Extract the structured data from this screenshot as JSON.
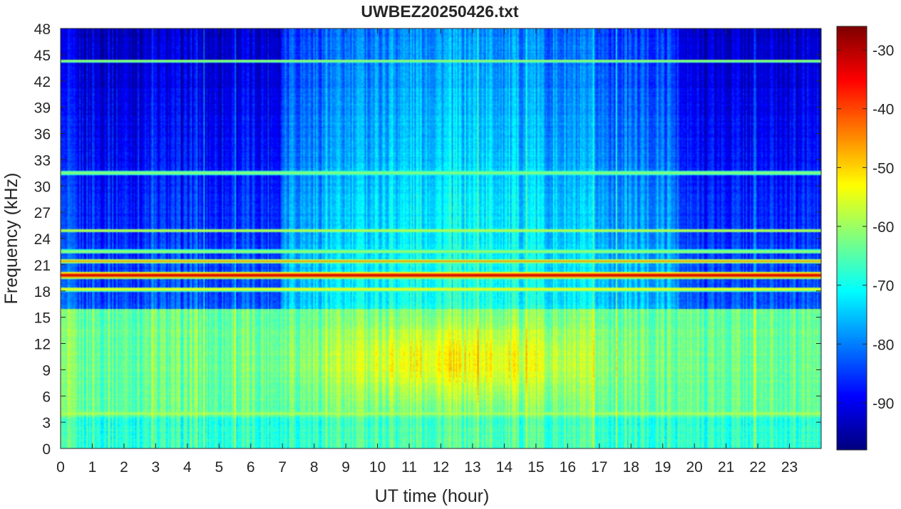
{
  "chart_data": {
    "type": "heatmap",
    "title": "UWBEZ20250426.txt",
    "xlabel": "UT time (hour)",
    "ylabel": "Frequency (kHz)",
    "xlim": [
      0,
      24
    ],
    "ylim": [
      0,
      48
    ],
    "x_ticks": [
      0,
      1,
      2,
      3,
      4,
      5,
      6,
      7,
      8,
      9,
      10,
      11,
      12,
      13,
      14,
      15,
      16,
      17,
      18,
      19,
      20,
      21,
      22,
      23
    ],
    "y_ticks": [
      0,
      3,
      6,
      9,
      12,
      15,
      18,
      21,
      24,
      27,
      30,
      33,
      36,
      39,
      42,
      45,
      48
    ],
    "colorbar": {
      "colormap": "jet",
      "range": [
        -98,
        -26
      ],
      "ticks": [
        -30,
        -40,
        -50,
        -60,
        -70,
        -80,
        -90
      ]
    },
    "grid": false,
    "features": {
      "strong_lines_khz": [
        19.8,
        21.4,
        18.2
      ],
      "weaker_lines_khz": [
        24.9,
        22.5,
        4.0,
        44.3,
        31.5
      ],
      "intense_band_khz": [
        5,
        16
      ],
      "intense_band_peak_hours": [
        9,
        17
      ],
      "quiet_high_freq_hours": [
        [
          0,
          7
        ],
        [
          19.5,
          24
        ]
      ]
    }
  }
}
